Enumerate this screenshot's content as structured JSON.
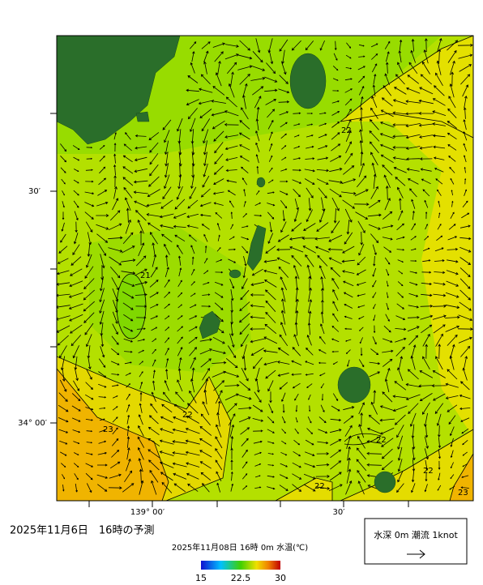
{
  "map": {
    "lat_labels": [
      "30′",
      "34° 00′"
    ],
    "lon_labels": [
      "139° 00′",
      "30′"
    ],
    "contour_labels": [
      "22",
      "21",
      "22",
      "23",
      "22",
      "22",
      "22",
      "23"
    ]
  },
  "caption": "2025年11月6日　16時の予測",
  "colorbar": {
    "title": "2025年11月08日 16時 0m 水温(℃)",
    "lim": [
      15,
      30
    ],
    "ticks": [
      15,
      22.5,
      30
    ]
  },
  "legend": {
    "label": "水深 0m 潮流 1knot"
  }
}
